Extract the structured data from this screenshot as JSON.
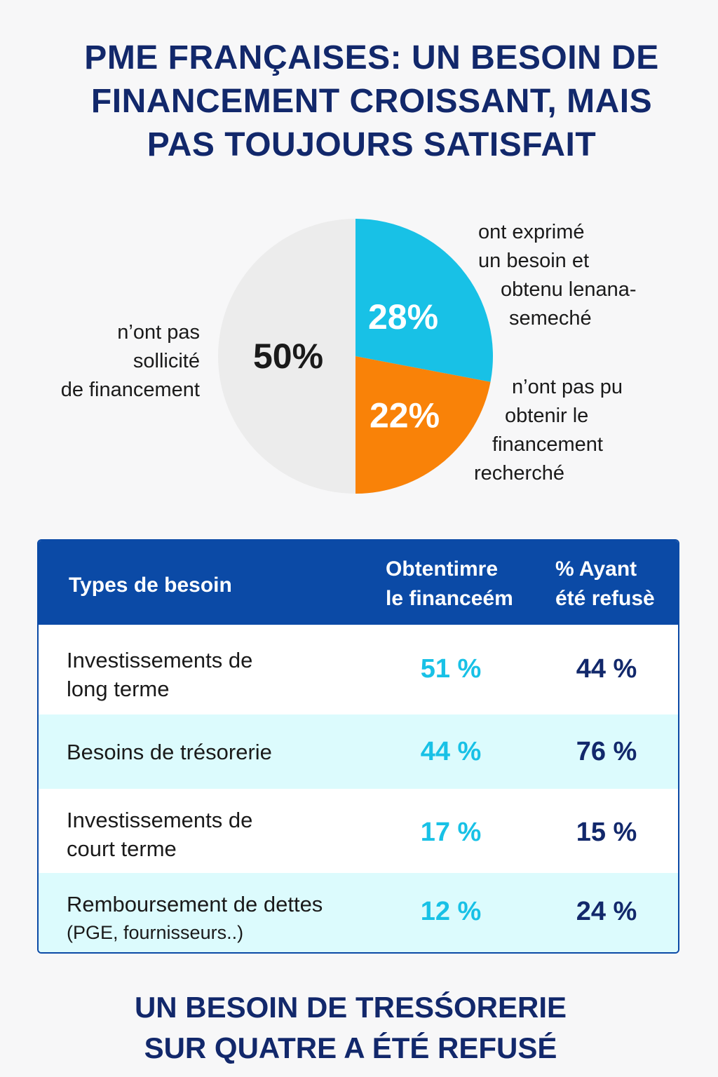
{
  "title": {
    "line1": "PME FRANÇAISES: UN BESOIN DE",
    "line2": "FINANCEMENT CROISSANT, MAIS",
    "line3": "PAS TOUJOURS SATISFAIT"
  },
  "colors": {
    "title": "#12286b",
    "obtained": "#18c1e6",
    "refused": "#f98208",
    "none": "#ececec",
    "table_header": "#0b4aa6",
    "row_alt": "#dcfbfd"
  },
  "chart_data": [
    {
      "type": "pie",
      "title": "",
      "slices": [
        {
          "value": 28,
          "label": "28%",
          "color": "#18c1e6",
          "description": [
            "ont exprimé",
            "un besoin et",
            "obtenu lenana-",
            "semeché"
          ]
        },
        {
          "value": 22,
          "label": "22%",
          "color": "#f98208",
          "description": [
            "n’ont pas pu",
            "obtenir le",
            "financement",
            "recherché"
          ]
        },
        {
          "value": 50,
          "label": "50%",
          "color": "#ececec",
          "description": [
            "n’ont pas",
            "sollicité",
            "de financement"
          ]
        }
      ]
    },
    {
      "type": "table",
      "columns": [
        [
          "Types de besoin"
        ],
        [
          "Obtentimre",
          "le financeém"
        ],
        [
          "% Ayant",
          "été refusè"
        ]
      ],
      "rows": [
        {
          "type": [
            "Investissements de",
            "long terme"
          ],
          "obtained": "51 %",
          "refused": "44 %"
        },
        {
          "type": [
            "Besoins de trésorerie"
          ],
          "obtained": "44 %",
          "refused": "76 %"
        },
        {
          "type": [
            "Investissements de",
            "court terme"
          ],
          "obtained": "17 %",
          "refused": "15 %"
        },
        {
          "type": [
            "Remboursement de dettes",
            "(PGE, fournisseurs..)"
          ],
          "obtained": "12 %",
          "refused": "24 %"
        }
      ]
    }
  ],
  "footer": {
    "line1": "UN BESOIN DE TRESŚORERIE",
    "line2": "SUR QUATRE A ÉTÉ REFUSÉ"
  }
}
